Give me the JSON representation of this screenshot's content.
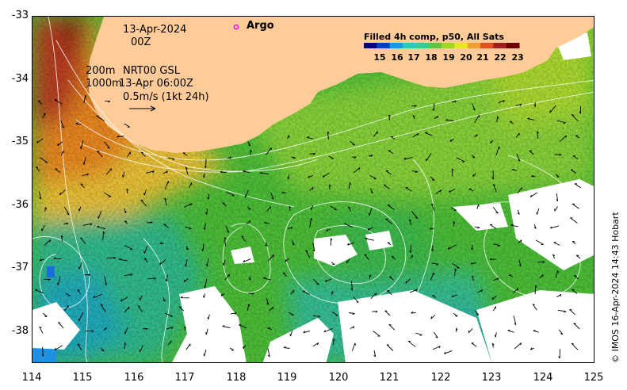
{
  "map": {
    "lon_range": [
      114,
      125
    ],
    "lat_range": [
      -38.5,
      -33
    ],
    "x_ticks": [
      "114",
      "115",
      "116",
      "117",
      "118",
      "119",
      "120",
      "121",
      "122",
      "123",
      "124",
      "125"
    ],
    "y_ticks": [
      "-33",
      "-34",
      "-35",
      "-36",
      "-37",
      "-38"
    ],
    "land_color": "#ffcc99",
    "current_contour_color": "#ffffff"
  },
  "annotations": {
    "date": "13-Apr-2024",
    "hour": "00Z",
    "depth_200": "200m",
    "depth_1000": "1000m",
    "product": "NRT00 GSL",
    "valid_time": "13-Apr 06:00Z",
    "scale_vector": "0.5m/s (1kt 24h)",
    "argo_label": "Argo",
    "argo_marker_color": "#ff00ff"
  },
  "legend": {
    "title": "Filled 4h comp, p50, All Sats",
    "ticks": [
      "15",
      "16",
      "17",
      "18",
      "19",
      "20",
      "21",
      "22",
      "23"
    ],
    "colors": [
      "#00007a",
      "#0040c0",
      "#1a9ad8",
      "#2ec8c0",
      "#3ec898",
      "#60c440",
      "#a0d820",
      "#e8e820",
      "#f0a030",
      "#e05020",
      "#a02020",
      "#700000"
    ]
  },
  "credit": "© IMOS 16-Apr-2024 14:43 Hobart"
}
